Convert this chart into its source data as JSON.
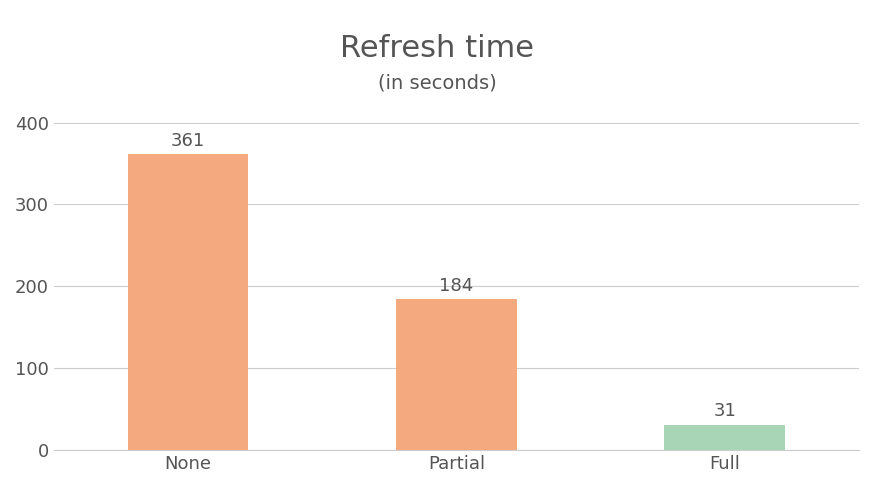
{
  "categories": [
    "None",
    "Partial",
    "Full"
  ],
  "values": [
    361,
    184,
    31
  ],
  "bar_colors": [
    "#F4A97F",
    "#F4A97F",
    "#A8D5B5"
  ],
  "title": "Refresh time",
  "subtitle": "(in seconds)",
  "ylim": [
    0,
    430
  ],
  "yticks": [
    0,
    100,
    200,
    300,
    400
  ],
  "title_fontsize": 22,
  "subtitle_fontsize": 14,
  "label_fontsize": 13,
  "tick_fontsize": 13,
  "value_label_fontsize": 13,
  "bar_width": 0.45,
  "background_color": "#ffffff",
  "grid_color": "#cccccc",
  "tick_color": "#555555",
  "title_color": "#555555"
}
